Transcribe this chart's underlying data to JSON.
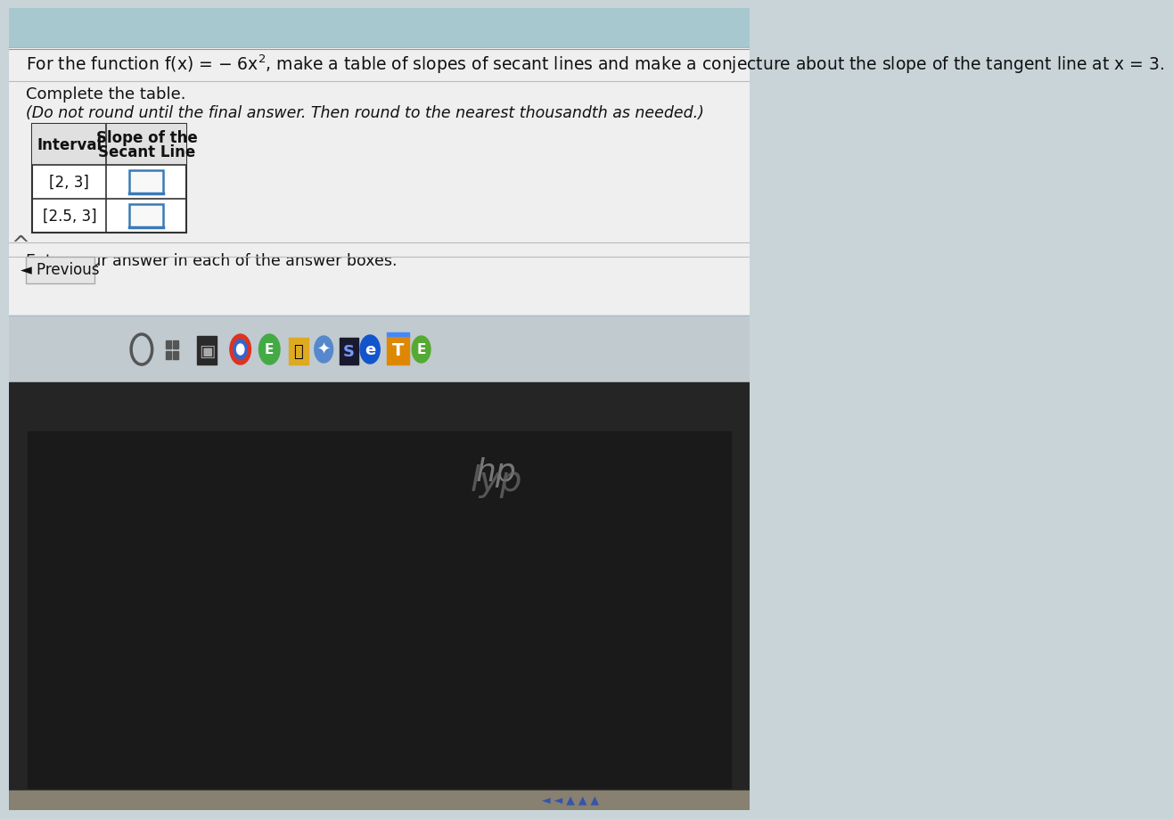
{
  "title_line": "For the function f(x) = − 6x², make a table of slopes of secant lines and make a conjecture about the slope of the tangent line at x = 3.",
  "subtitle1": "Complete the table.",
  "subtitle2": "(Do not round until the final answer. Then round to the nearest thousandth as needed.)",
  "col1_header": "Interval",
  "col2_header_line1": "Slope of the",
  "col2_header_line2": "Secant Line",
  "row1_interval": "[2, 3]",
  "row2_interval": "[2.5, 3]",
  "footer_text": "Enter your answer in each of the answer boxes.",
  "prev_button": "◄ Previous",
  "bg_top_color": "#a8c8d0",
  "bg_main_color": "#c8d4d8",
  "bg_bottom_color": "#1a1a1a",
  "taskbar_color": "#c0cacf",
  "table_bg": "#ffffff",
  "table_border": "#333333",
  "input_box_border": "#3a7ab8",
  "input_box_bg": "#f8f8f8",
  "text_color": "#111111",
  "font_size_title": 13,
  "font_size_body": 12,
  "font_size_table": 12
}
